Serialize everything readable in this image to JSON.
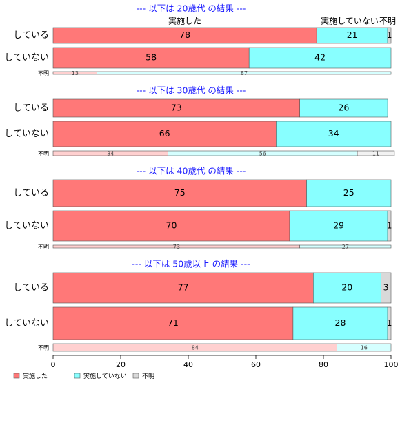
{
  "chart_data": {
    "type": "bar",
    "orientation": "horizontal",
    "stacked": true,
    "percent": true,
    "xlim": [
      0,
      100
    ],
    "x_ticks": [
      0,
      20,
      40,
      60,
      80,
      100
    ],
    "category_labels": [
      "実施した",
      "実施していない",
      "不明"
    ],
    "colors": {
      "実施した": "#ff7878",
      "実施していない": "#88ffff",
      "不明": "#d9d9d9"
    },
    "grid": false,
    "legend_position": "bottom-left",
    "top_labels": [
      "実施した",
      "実施していない",
      "不明"
    ],
    "panels": [
      {
        "title": "--- 以下は 20歳代 の結果 ---",
        "rows": [
          {
            "label": "している",
            "values": [
              78,
              21,
              1
            ]
          },
          {
            "label": "していない",
            "values": [
              58,
              42,
              0
            ]
          },
          {
            "label": "不明",
            "values": [
              13,
              87,
              0
            ],
            "thin": true
          }
        ]
      },
      {
        "title": "--- 以下は 30歳代 の結果 ---",
        "rows": [
          {
            "label": "している",
            "values": [
              73,
              26,
              0
            ]
          },
          {
            "label": "していない",
            "values": [
              66,
              34,
              0
            ]
          },
          {
            "label": "不明",
            "values": [
              34,
              56,
              11
            ],
            "thin": true
          }
        ]
      },
      {
        "title": "--- 以下は 40歳代 の結果 ---",
        "rows": [
          {
            "label": "している",
            "values": [
              75,
              25,
              0
            ]
          },
          {
            "label": "していない",
            "values": [
              70,
              29,
              1
            ]
          },
          {
            "label": "不明",
            "values": [
              73,
              27,
              0
            ],
            "thin": true
          }
        ]
      },
      {
        "title": "--- 以下は 50歳以上 の結果 ---",
        "rows": [
          {
            "label": "している",
            "values": [
              77,
              20,
              3
            ]
          },
          {
            "label": "していない",
            "values": [
              71,
              28,
              1
            ]
          },
          {
            "label": "不明",
            "values": [
              84,
              16,
              0
            ],
            "thin": true
          }
        ]
      }
    ]
  }
}
